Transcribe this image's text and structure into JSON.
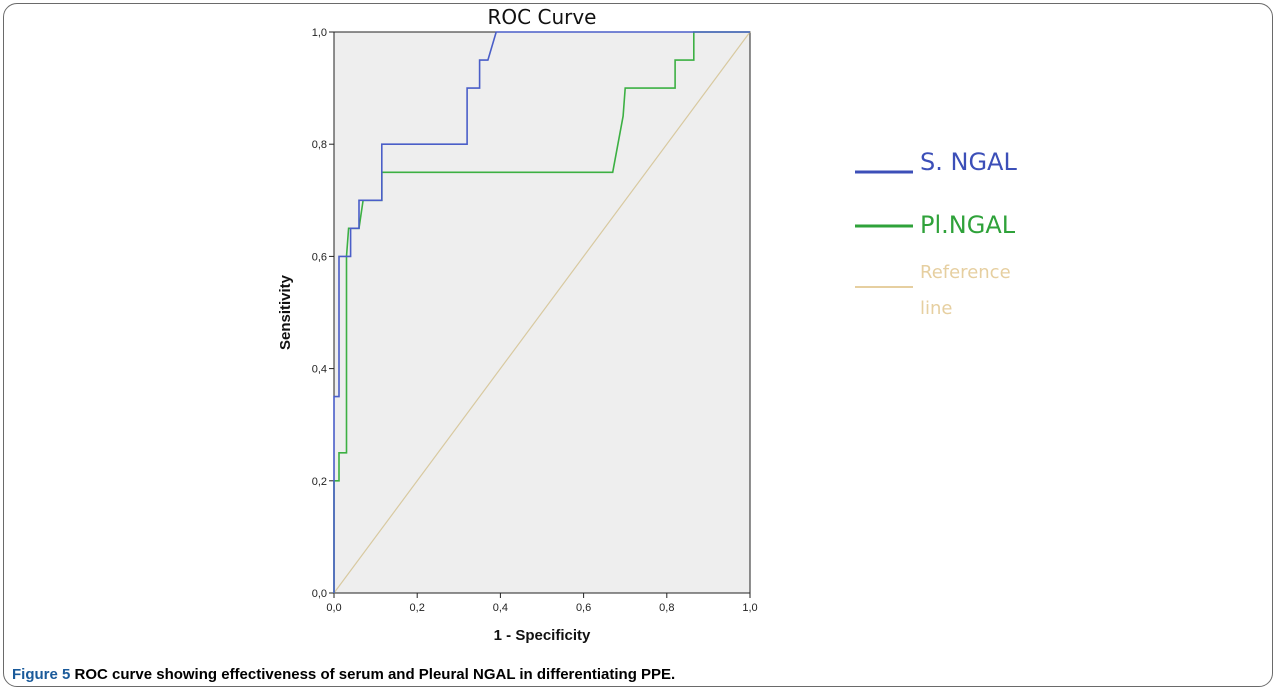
{
  "chart_data": {
    "type": "line",
    "title": "ROC Curve",
    "xlabel": "1 - Specificity",
    "ylabel": "Sensitivity",
    "xlim": [
      0,
      1
    ],
    "ylim": [
      0,
      1
    ],
    "x_ticks": [
      "0,0",
      "0,2",
      "0,4",
      "0,6",
      "0,8",
      "1,0"
    ],
    "y_ticks": [
      "0,0",
      "0,2",
      "0,4",
      "0,6",
      "0,8",
      "1,0"
    ],
    "grid": false,
    "legend_position": "right",
    "series": [
      {
        "name": "S. NGAL",
        "color": "#4a5ec8",
        "points": [
          [
            0,
            0
          ],
          [
            0,
            0.35
          ],
          [
            0.012,
            0.35
          ],
          [
            0.012,
            0.6
          ],
          [
            0.04,
            0.6
          ],
          [
            0.04,
            0.65
          ],
          [
            0.06,
            0.65
          ],
          [
            0.06,
            0.7
          ],
          [
            0.115,
            0.7
          ],
          [
            0.115,
            0.8
          ],
          [
            0.32,
            0.8
          ],
          [
            0.32,
            0.9
          ],
          [
            0.35,
            0.9
          ],
          [
            0.35,
            0.95
          ],
          [
            0.37,
            0.95
          ],
          [
            0.39,
            1.0
          ],
          [
            1.0,
            1.0
          ]
        ]
      },
      {
        "name": "Pl.NGAL",
        "color": "#3cb043",
        "points": [
          [
            0,
            0
          ],
          [
            0,
            0.2
          ],
          [
            0.012,
            0.2
          ],
          [
            0.012,
            0.25
          ],
          [
            0.03,
            0.25
          ],
          [
            0.03,
            0.6
          ],
          [
            0.035,
            0.65
          ],
          [
            0.06,
            0.65
          ],
          [
            0.07,
            0.7
          ],
          [
            0.115,
            0.7
          ],
          [
            0.115,
            0.75
          ],
          [
            0.67,
            0.75
          ],
          [
            0.695,
            0.85
          ],
          [
            0.7,
            0.9
          ],
          [
            0.82,
            0.9
          ],
          [
            0.82,
            0.95
          ],
          [
            0.865,
            0.95
          ],
          [
            0.865,
            1.0
          ],
          [
            1.0,
            1.0
          ]
        ]
      },
      {
        "name": "Reference line",
        "color": "#d8c9a0",
        "points": [
          [
            0,
            0
          ],
          [
            1,
            1
          ]
        ]
      }
    ]
  },
  "legend": [
    {
      "label": "S. NGAL",
      "color": "#3c4fb8"
    },
    {
      "label": "Pl.NGAL",
      "color": "#2fa23a"
    },
    {
      "label": "Reference line",
      "color": "#e6cfa0"
    }
  ],
  "caption": {
    "label": "Figure 5",
    "text": "ROC curve showing effectiveness of serum and Pleural NGAL in differentiating PPE."
  }
}
